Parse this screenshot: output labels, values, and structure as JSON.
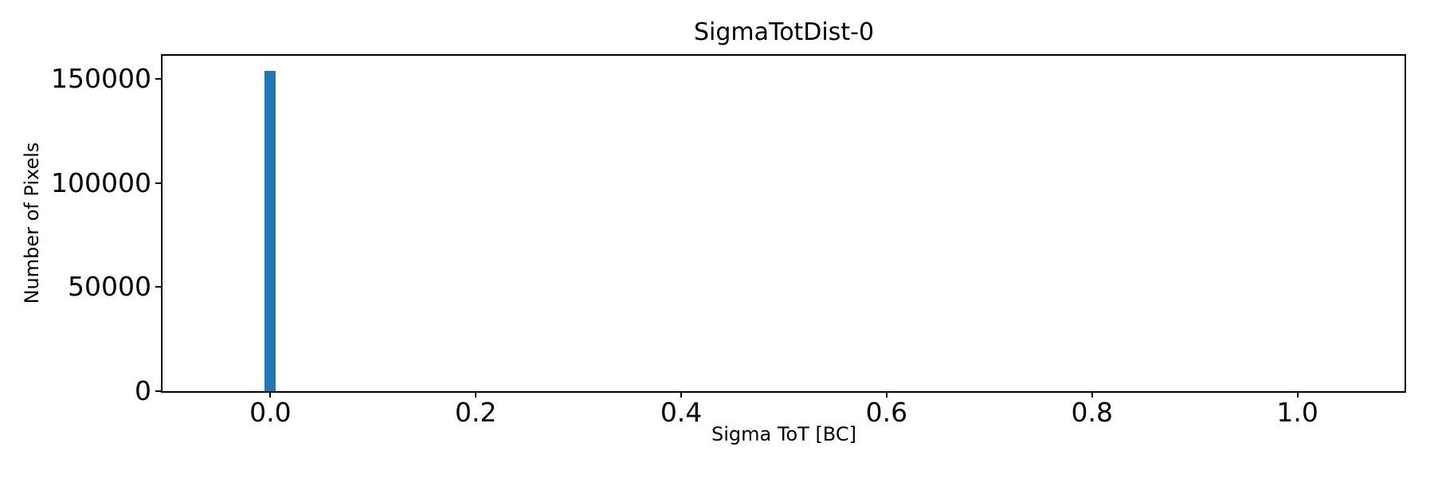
{
  "chart_data": {
    "type": "bar",
    "style": "histogram",
    "title": "SigmaTotDist-0",
    "xlabel": "Sigma ToT [BC]",
    "ylabel": "Number of Pixels",
    "xlim": [
      -0.105,
      1.105
    ],
    "ylim": [
      0,
      161000
    ],
    "grid": false,
    "legend": false,
    "background_color": "#ffffff",
    "axis_color": "#000000",
    "bar_color": "#1f77b4",
    "xticks": [
      {
        "value": 0.0,
        "label": "0.0"
      },
      {
        "value": 0.2,
        "label": "0.2"
      },
      {
        "value": 0.4,
        "label": "0.4"
      },
      {
        "value": 0.6,
        "label": "0.6"
      },
      {
        "value": 0.8,
        "label": "0.8"
      },
      {
        "value": 1.0,
        "label": "1.0"
      }
    ],
    "yticks": [
      {
        "value": 0,
        "label": "0"
      },
      {
        "value": 50000,
        "label": "50000"
      },
      {
        "value": 100000,
        "label": "100000"
      },
      {
        "value": 150000,
        "label": "150000"
      }
    ],
    "bars": [
      {
        "bin_center": 0.0,
        "bin_width": 0.011,
        "count": 153800
      }
    ]
  }
}
